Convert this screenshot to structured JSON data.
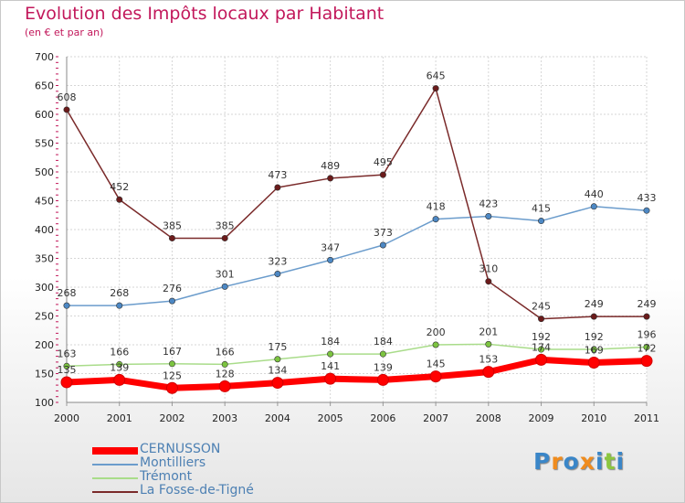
{
  "title": "Evolution des Impôts locaux par Habitant",
  "subtitle": "(en € et par an)",
  "logo": {
    "letters": [
      {
        "ch": "P",
        "color": "#3a86c8"
      },
      {
        "ch": "r",
        "color": "#f08c1e"
      },
      {
        "ch": "o",
        "color": "#3a86c8"
      },
      {
        "ch": "x",
        "color": "#f08c1e"
      },
      {
        "ch": "i",
        "color": "#3a86c8"
      },
      {
        "ch": "t",
        "color": "#8cc63f"
      },
      {
        "ch": "i",
        "color": "#3a86c8"
      }
    ]
  },
  "chart_data": {
    "type": "line",
    "title": "Evolution des Impôts locaux par Habitant",
    "subtitle": "(en € et par an)",
    "x": [
      2000,
      2001,
      2002,
      2003,
      2004,
      2005,
      2006,
      2007,
      2008,
      2009,
      2010,
      2011
    ],
    "ylim": [
      100,
      700
    ],
    "yticks": [
      100,
      150,
      200,
      250,
      300,
      350,
      400,
      450,
      500,
      550,
      600,
      650,
      700
    ],
    "grid": true,
    "legend_position": "bottom-left",
    "series": [
      {
        "name": "CERNUSSON",
        "color": "#ff0000",
        "marker_color": "#e00000",
        "thick": true,
        "values": [
          135,
          139,
          125,
          128,
          134,
          141,
          139,
          145,
          153,
          174,
          169,
          172
        ]
      },
      {
        "name": "Montilliers",
        "color": "#6b9ccc",
        "marker_color": "#4d88c4",
        "thick": false,
        "values": [
          268,
          268,
          276,
          301,
          323,
          347,
          373,
          418,
          423,
          415,
          440,
          433
        ]
      },
      {
        "name": "Trémont",
        "color": "#a9dc8a",
        "marker_color": "#7cc440",
        "thick": false,
        "values": [
          163,
          166,
          167,
          166,
          175,
          184,
          184,
          200,
          201,
          192,
          192,
          196
        ]
      },
      {
        "name": "La Fosse-de-Tigné",
        "color": "#7a2a2a",
        "marker_color": "#6b1b1b",
        "thick": false,
        "values": [
          608,
          452,
          385,
          385,
          473,
          489,
          495,
          645,
          310,
          245,
          249,
          249
        ]
      }
    ]
  }
}
